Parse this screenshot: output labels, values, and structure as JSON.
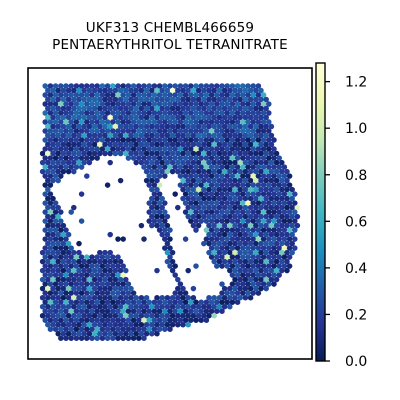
{
  "chart_data": {
    "type": "heatmap",
    "title_lines": [
      "UKF313 CHEMBL466659",
      "PENTAERYTHRITOL TETRANITRATE"
    ],
    "xlabel": "",
    "ylabel": "",
    "colorbar": {
      "range": [
        0.0,
        1.28
      ],
      "ticks": [
        "0.0",
        "0.2",
        "0.4",
        "0.6",
        "0.8",
        "1.0",
        "1.2"
      ],
      "tick_values": [
        0.0,
        0.2,
        0.4,
        0.6,
        0.8,
        1.0,
        1.2
      ],
      "colormap": [
        "#081d58",
        "#253494",
        "#225ea8",
        "#1d91c0",
        "#41b6c4",
        "#7fcdbb",
        "#c7e9b4",
        "#edf8b1",
        "#ffffd9"
      ]
    },
    "spot_value_summary": {
      "typical": [
        0.1,
        0.3
      ],
      "max": 1.25
    },
    "grid": false,
    "frame": true
  }
}
